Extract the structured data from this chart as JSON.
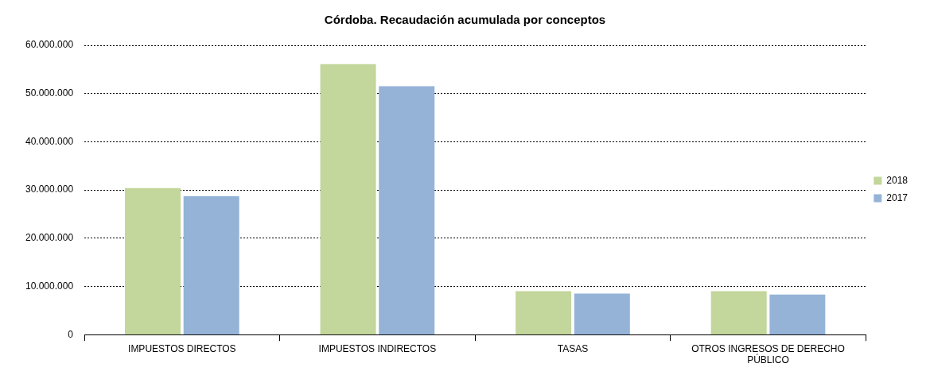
{
  "chart_data": {
    "type": "bar",
    "title": "Córdoba. Recaudación acumulada por conceptos",
    "categories": [
      "IMPUESTOS DIRECTOS",
      "IMPUESTOS INDIRECTOS",
      "TASAS",
      "OTROS INGRESOS DE DERECHO PÚBLICO"
    ],
    "series": [
      {
        "name": "2018",
        "color": "#c3d69b",
        "values": [
          30400000,
          56100000,
          9000000,
          9000000
        ]
      },
      {
        "name": "2017",
        "color": "#95b3d7",
        "values": [
          28700000,
          51500000,
          8500000,
          8300000
        ]
      }
    ],
    "ylim": [
      0,
      60000000
    ],
    "yticks": [
      {
        "value": 0,
        "label": "0"
      },
      {
        "value": 10000000,
        "label": "10.000.000"
      },
      {
        "value": 20000000,
        "label": "20.000.000"
      },
      {
        "value": 30000000,
        "label": "30.000.000"
      },
      {
        "value": 40000000,
        "label": "40.000.000"
      },
      {
        "value": 50000000,
        "label": "50.000.000"
      },
      {
        "value": 60000000,
        "label": "60.000.000"
      }
    ],
    "grid": "y",
    "legend": "right"
  }
}
